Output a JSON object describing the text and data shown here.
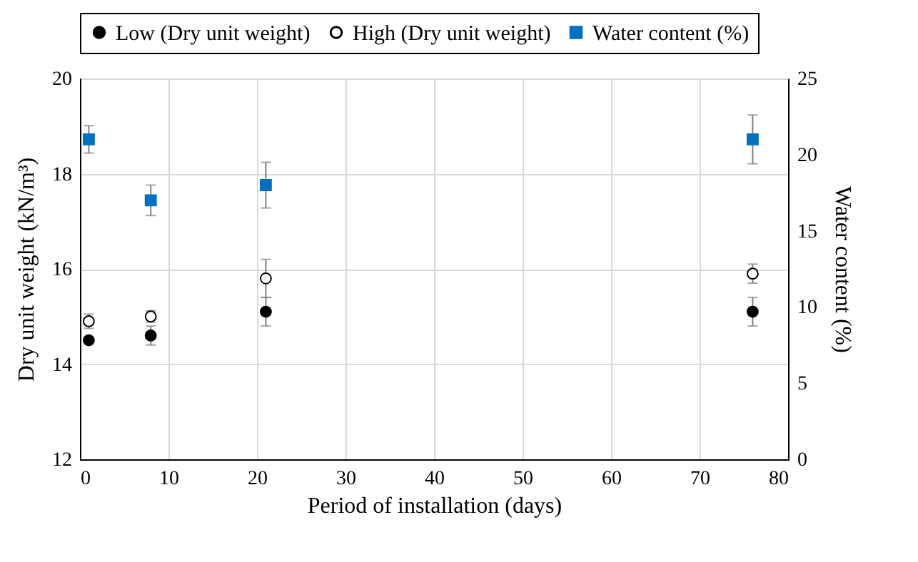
{
  "chart_data": {
    "type": "scatter",
    "xlabel": "Period of installation (days)",
    "ylabel": "Dry unit weight (kN/m³)",
    "y2label": "Water content (%)",
    "x": [
      1,
      8,
      21,
      76
    ],
    "xlim": [
      0,
      80
    ],
    "xticks": [
      0,
      10,
      20,
      30,
      40,
      50,
      60,
      70,
      80
    ],
    "ylim": [
      12,
      20
    ],
    "yticks": [
      12,
      14,
      16,
      18,
      20
    ],
    "y2lim": [
      0,
      25
    ],
    "y2ticks": [
      0,
      5,
      10,
      15,
      20,
      25
    ],
    "grid": true,
    "legend": "top",
    "series": [
      {
        "name": "Low (Dry unit weight)",
        "color": "#000000",
        "marker": "circle",
        "values": [
          14.5,
          14.6,
          15.1,
          15.1
        ],
        "errors": [
          0.05,
          0.2,
          0.3,
          0.3
        ]
      },
      {
        "name": "High (Dry unit weight)",
        "color": "#ffffff",
        "marker": "circle",
        "values": [
          14.9,
          15.0,
          15.8,
          15.9
        ],
        "errors": [
          0.15,
          0.12,
          0.4,
          0.2
        ]
      },
      {
        "name": "Water content (%)",
        "color": "#0070c0",
        "marker": "square",
        "axis": "y2",
        "values": [
          21.0,
          17.0,
          18.0,
          21.0
        ],
        "errors": [
          0.9,
          1.0,
          1.5,
          1.6
        ]
      }
    ]
  }
}
